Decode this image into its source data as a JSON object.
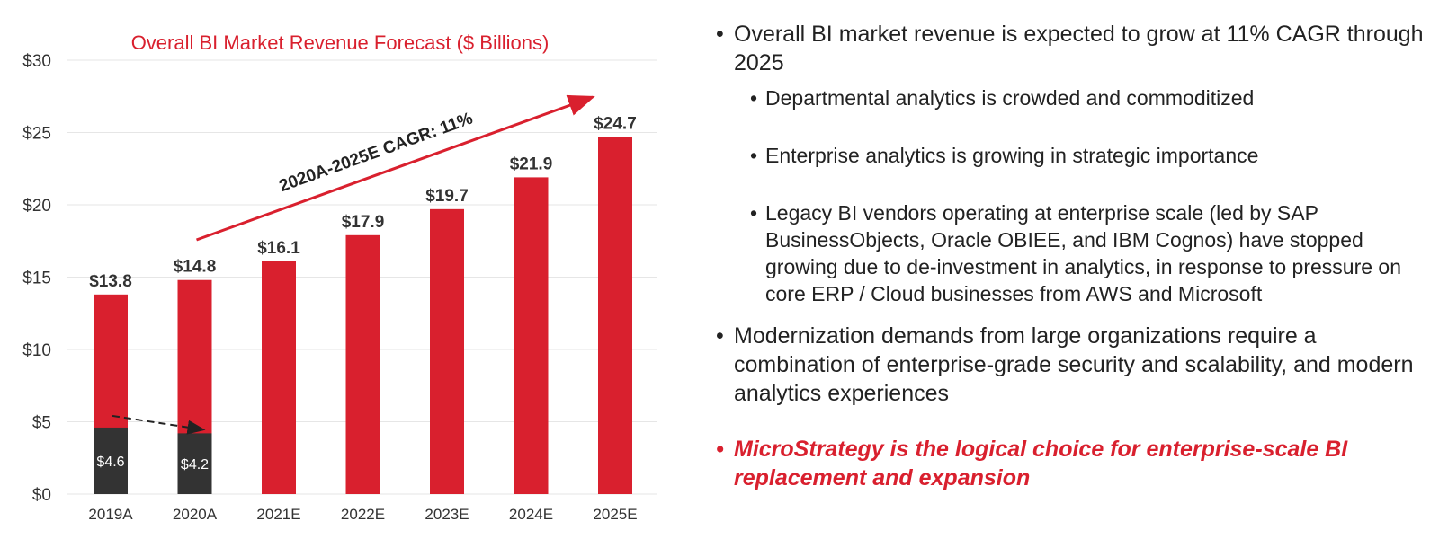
{
  "chart_data": {
    "type": "bar",
    "title": "Overall BI Market Revenue Forecast ($ Billions)",
    "categories": [
      "2019A",
      "2020A",
      "2021E",
      "2022E",
      "2023E",
      "2024E",
      "2025E"
    ],
    "series": [
      {
        "values": [
          13.8,
          14.8,
          16.1,
          17.9,
          19.7,
          21.9,
          24.7
        ],
        "labels": [
          "$13.8",
          "$14.8",
          "$16.1",
          "$17.9",
          "$19.7",
          "$21.9",
          "$24.7"
        ],
        "color": "#d9202e"
      },
      {
        "values": [
          4.6,
          4.2,
          null,
          null,
          null,
          null,
          null
        ],
        "labels": [
          "$4.6",
          "$4.2",
          "",
          "",
          "",
          "",
          ""
        ],
        "color": "#333333"
      }
    ],
    "y_ticks": [
      0,
      5,
      10,
      15,
      20,
      25,
      30
    ],
    "y_tick_labels": [
      "$0",
      "$5",
      "$10",
      "$15",
      "$20",
      "$25",
      "$30"
    ],
    "ylim": [
      0,
      30
    ],
    "grid": true,
    "annotations": [
      {
        "text": "2020A-2025E CAGR: 11%",
        "type": "arrow",
        "from_category": "2020A",
        "to_category": "2025E"
      },
      {
        "type": "dashed-arrow",
        "from_category": "2019A",
        "to_category": "2020A"
      }
    ]
  },
  "bullets": [
    {
      "text": "Overall BI market revenue is expected to grow at 11% CAGR through 2025",
      "sub": [
        "Departmental analytics is crowded and commoditized",
        "Enterprise analytics is growing in strategic importance",
        "Legacy BI vendors operating at enterprise scale (led by SAP BusinessObjects, Oracle OBIEE, and IBM Cognos) have stopped growing due to de-investment in analytics, in response to pressure on core ERP / Cloud businesses from AWS and Microsoft"
      ]
    },
    {
      "text": "Modernization demands from large organizations require a combination of enterprise-grade security and scalability, and modern analytics experiences"
    },
    {
      "text": "MicroStrategy is the logical choice for enterprise-scale BI replacement and expansion",
      "highlight": true
    }
  ],
  "bullet_symbol": "•",
  "colors": {
    "accent": "#d9202e",
    "dark": "#333333",
    "grid": "#e6e6e6"
  }
}
